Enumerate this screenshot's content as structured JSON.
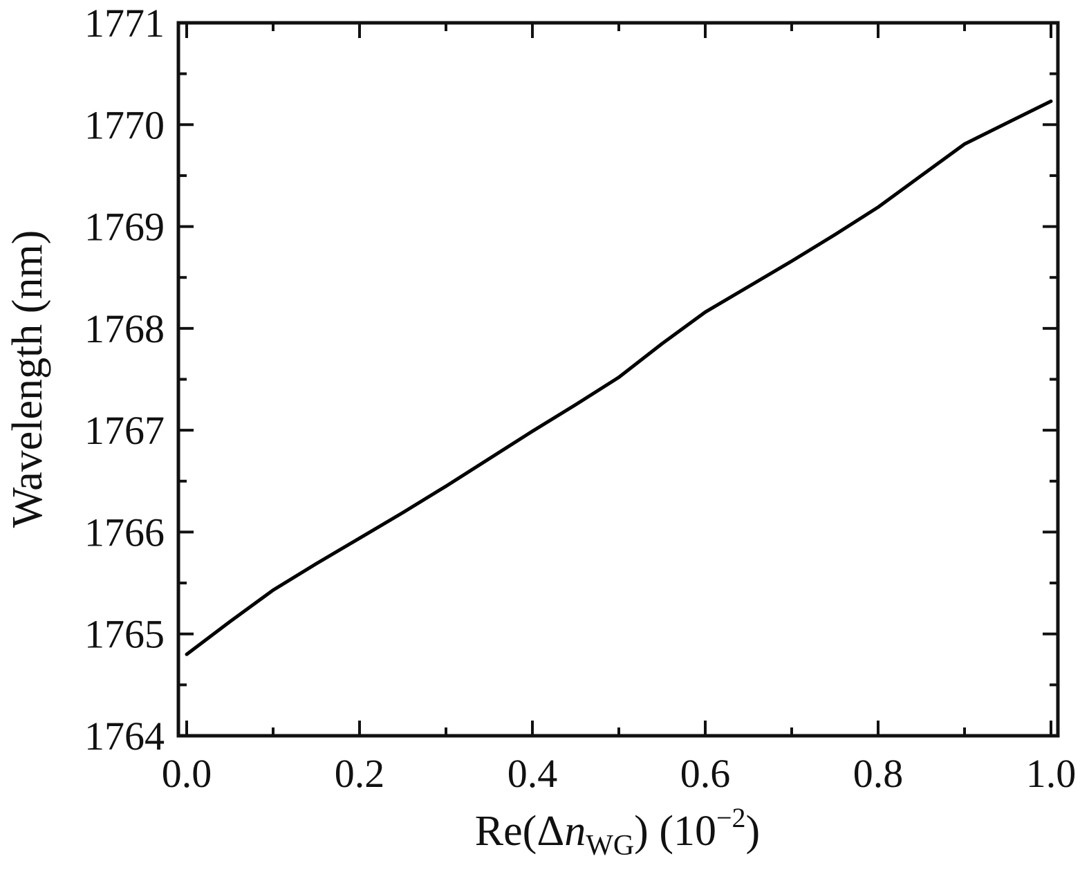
{
  "chart_data": {
    "type": "line",
    "title": "",
    "xlabel": {
      "prefix": "Re(Δ",
      "var": "n",
      "sub": "WG",
      "suffix": ") (10",
      "sup": "−2",
      "close": ")"
    },
    "ylabel": "Wavelength (nm)",
    "xlim": [
      0.0,
      1.0
    ],
    "ylim": [
      1764,
      1771
    ],
    "xticks": [
      "0.0",
      "0.2",
      "0.4",
      "0.6",
      "0.8",
      "1.0"
    ],
    "yticks": [
      "1764",
      "1765",
      "1766",
      "1767",
      "1768",
      "1769",
      "1770",
      "1771"
    ],
    "grid": false,
    "legend": "none",
    "series": [
      {
        "color": "#000000",
        "x": [
          0.0,
          0.05,
          0.1,
          0.15,
          0.2,
          0.25,
          0.3,
          0.35,
          0.4,
          0.45,
          0.5,
          0.55,
          0.6,
          0.65,
          0.7,
          0.75,
          0.8,
          0.85,
          0.9,
          0.95,
          1.0
        ],
        "y": [
          1764.8,
          1765.12,
          1765.43,
          1765.69,
          1765.94,
          1766.19,
          1766.45,
          1766.72,
          1766.99,
          1767.25,
          1767.52,
          1767.85,
          1768.16,
          1768.41,
          1768.66,
          1768.92,
          1769.19,
          1769.5,
          1769.81,
          1770.02,
          1770.23
        ]
      }
    ]
  }
}
